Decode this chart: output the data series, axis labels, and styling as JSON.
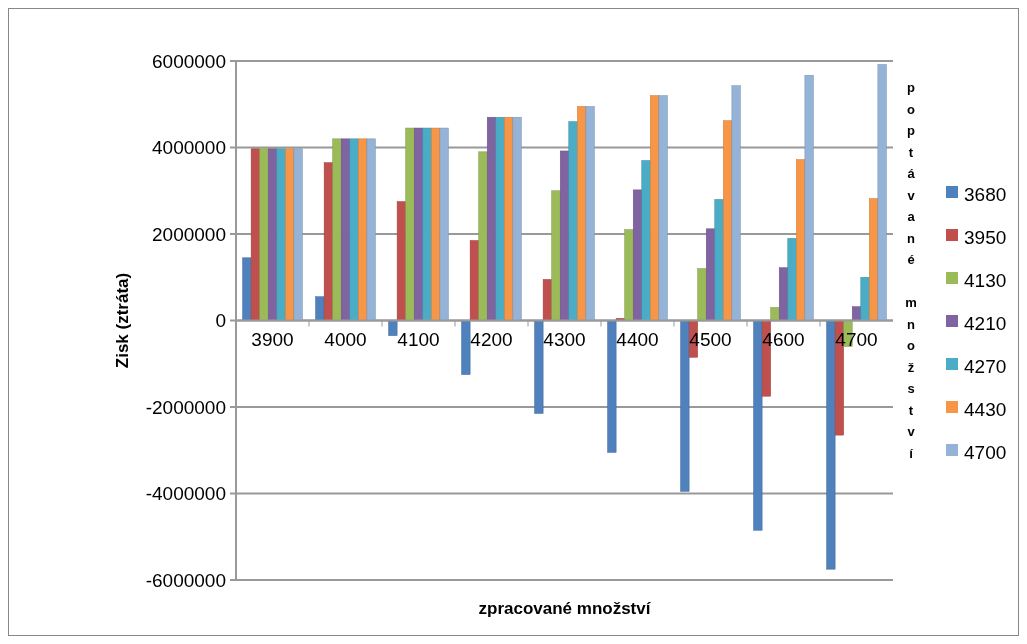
{
  "chart_data": {
    "type": "bar",
    "xlabel": "zpracované množství",
    "ylabel": "Zisk (ztráta)",
    "legend_title": "poptávané množství",
    "categories": [
      "3900",
      "4000",
      "4100",
      "4200",
      "4300",
      "4400",
      "4500",
      "4600",
      "4700"
    ],
    "series": [
      {
        "name": "3680",
        "color": "#4f81bd",
        "values": [
          1450000,
          550000,
          -350000,
          -1250000,
          -2150000,
          -3050000,
          -3950000,
          -4850000,
          -5750000
        ]
      },
      {
        "name": "3950",
        "color": "#c0504d",
        "values": [
          3970000,
          3650000,
          2750000,
          1850000,
          950000,
          50000,
          -850000,
          -1750000,
          -2650000
        ]
      },
      {
        "name": "4130",
        "color": "#9bbb59",
        "values": [
          3970000,
          4200000,
          4450000,
          3900000,
          3000000,
          2100000,
          1200000,
          300000,
          -600000
        ]
      },
      {
        "name": "4210",
        "color": "#8064a2",
        "values": [
          3970000,
          4200000,
          4450000,
          4700000,
          3920000,
          3020000,
          2120000,
          1220000,
          320000
        ]
      },
      {
        "name": "4270",
        "color": "#4bacc6",
        "values": [
          3970000,
          4200000,
          4450000,
          4700000,
          4600000,
          3700000,
          2800000,
          1900000,
          1000000
        ]
      },
      {
        "name": "4430",
        "color": "#f79646",
        "values": [
          3970000,
          4200000,
          4450000,
          4700000,
          4950000,
          5200000,
          4620000,
          3720000,
          2820000
        ]
      },
      {
        "name": "4700",
        "color": "#95b3d7",
        "values": [
          3970000,
          4200000,
          4450000,
          4700000,
          4950000,
          5200000,
          5430000,
          5670000,
          5920000
        ]
      }
    ],
    "ylim": [
      -6000000,
      6000000
    ],
    "yticks": [
      -6000000,
      -4000000,
      -2000000,
      0,
      2000000,
      4000000,
      6000000
    ],
    "grid": "y",
    "legend": "right"
  }
}
